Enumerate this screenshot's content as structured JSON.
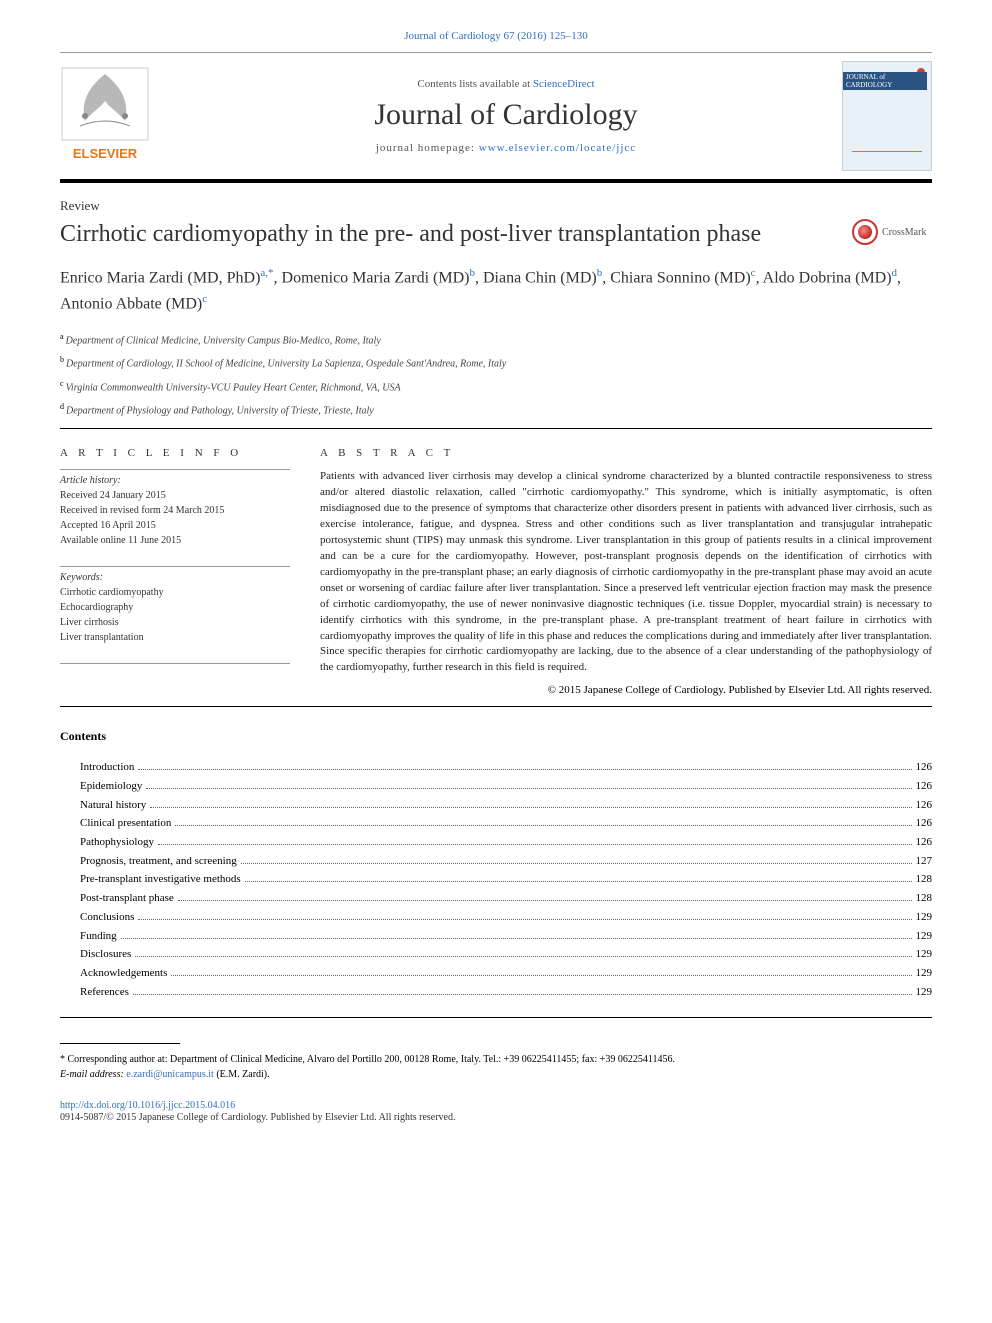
{
  "top_citation": "Journal of Cardiology 67 (2016) 125–130",
  "header": {
    "contents_prefix": "Contents lists available at ",
    "contents_link": "ScienceDirect",
    "journal_name": "Journal of Cardiology",
    "homepage_prefix": "journal homepage: ",
    "homepage_link": "www.elsevier.com/locate/jjcc",
    "cover_badge": "JOURNAL of CARDIOLOGY"
  },
  "article_type": "Review",
  "title": "Cirrhotic cardiomyopathy in the pre- and post-liver transplantation phase",
  "crossmark_label": "CrossMark",
  "authors_html": "Enrico Maria Zardi (MD, PhD)<sup class='sup'>a,*</sup>, Domenico Maria Zardi (MD)<sup class='sup'>b</sup>, Diana Chin (MD)<sup class='sup'>b</sup>, Chiara Sonnino (MD)<sup class='sup'>c</sup>, Aldo Dobrina (MD)<sup class='sup'>d</sup>, Antonio Abbate (MD)<sup class='sup'>c</sup>",
  "affiliations": [
    {
      "label": "a",
      "text": "Department of Clinical Medicine, University Campus Bio-Medico, Rome, Italy"
    },
    {
      "label": "b",
      "text": "Department of Cardiology, II School of Medicine, University La Sapienza, Ospedale Sant'Andrea, Rome, Italy"
    },
    {
      "label": "c",
      "text": "Virginia Commonwealth University-VCU Pauley Heart Center, Richmond, VA, USA"
    },
    {
      "label": "d",
      "text": "Department of Physiology and Pathology, University of Trieste, Trieste, Italy"
    }
  ],
  "info": {
    "heading": "A R T I C L E   I N F O",
    "history_label": "Article history:",
    "history": [
      "Received 24 January 2015",
      "Received in revised form 24 March 2015",
      "Accepted 16 April 2015",
      "Available online 11 June 2015"
    ],
    "keywords_label": "Keywords:",
    "keywords": [
      "Cirrhotic cardiomyopathy",
      "Echocardiography",
      "Liver cirrhosis",
      "Liver transplantation"
    ]
  },
  "abstract": {
    "heading": "A B S T R A C T",
    "text": "Patients with advanced liver cirrhosis may develop a clinical syndrome characterized by a blunted contractile responsiveness to stress and/or altered diastolic relaxation, called \"cirrhotic cardiomyopathy.\" This syndrome, which is initially asymptomatic, is often misdiagnosed due to the presence of symptoms that characterize other disorders present in patients with advanced liver cirrhosis, such as exercise intolerance, fatigue, and dyspnea. Stress and other conditions such as liver transplantation and transjugular intrahepatic portosystemic shunt (TIPS) may unmask this syndrome. Liver transplantation in this group of patients results in a clinical improvement and can be a cure for the cardiomyopathy. However, post-transplant prognosis depends on the identification of cirrhotics with cardiomyopathy in the pre-transplant phase; an early diagnosis of cirrhotic cardiomyopathy in the pre-transplant phase may avoid an acute onset or worsening of cardiac failure after liver transplantation. Since a preserved left ventricular ejection fraction may mask the presence of cirrhotic cardiomyopathy, the use of newer noninvasive diagnostic techniques (i.e. tissue Doppler, myocardial strain) is necessary to identify cirrhotics with this syndrome, in the pre-transplant phase. A pre-transplant treatment of heart failure in cirrhotics with cardiomyopathy improves the quality of life in this phase and reduces the complications during and immediately after liver transplantation. Since specific therapies for cirrhotic cardiomyopathy are lacking, due to the absence of a clear understanding of the pathophysiology of the cardiomyopathy, further research in this field is required.",
    "copyright": "© 2015 Japanese College of Cardiology. Published by Elsevier Ltd. All rights reserved."
  },
  "contents": {
    "heading": "Contents",
    "items": [
      {
        "label": "Introduction",
        "page": "126"
      },
      {
        "label": "Epidemiology",
        "page": "126"
      },
      {
        "label": "Natural history",
        "page": "126"
      },
      {
        "label": "Clinical presentation",
        "page": "126"
      },
      {
        "label": "Pathophysiology",
        "page": "126"
      },
      {
        "label": "Prognosis, treatment, and screening",
        "page": "127"
      },
      {
        "label": "Pre-transplant investigative methods",
        "page": "128"
      },
      {
        "label": "Post-transplant phase",
        "page": "128"
      },
      {
        "label": "Conclusions",
        "page": "129"
      },
      {
        "label": "Funding",
        "page": "129"
      },
      {
        "label": "Disclosures",
        "page": "129"
      },
      {
        "label": "Acknowledgements",
        "page": "129"
      },
      {
        "label": "References",
        "page": "129"
      }
    ]
  },
  "footnote": {
    "star": "*",
    "text": "Corresponding author at: Department of Clinical Medicine, Alvaro del Portillo 200, 00128 Rome, Italy. Tel.: +39 06225411455; fax: +39 06225411456.",
    "email_label": "E-mail address: ",
    "email": "e.zardi@unicampus.it",
    "email_suffix": " (E.M. Zardi)."
  },
  "doi": "http://dx.doi.org/10.1016/j.jjcc.2015.04.016",
  "issn": "0914-5087/© 2015 Japanese College of Cardiology. Published by Elsevier Ltd. All rights reserved.",
  "colors": {
    "link": "#3070c0",
    "text": "#000000",
    "rule": "#000000"
  }
}
